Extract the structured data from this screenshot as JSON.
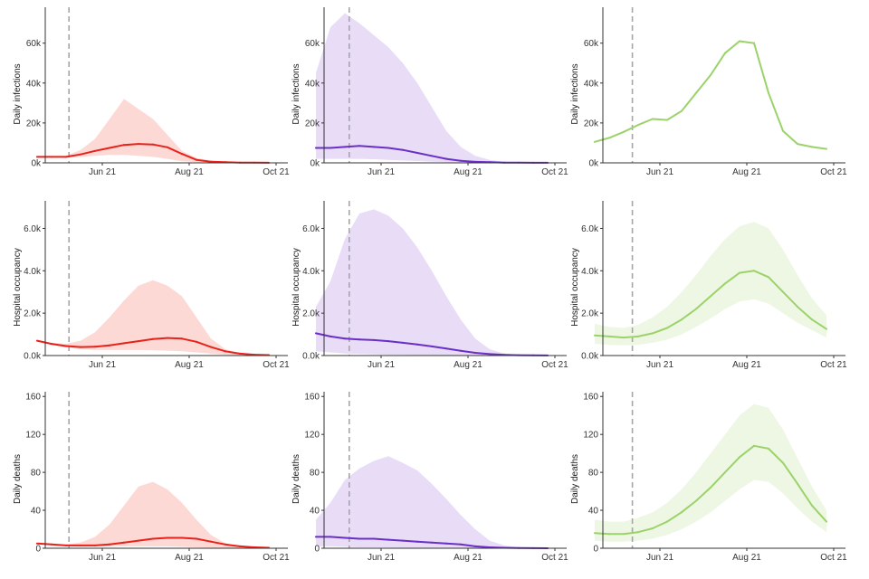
{
  "chart_data": {
    "type": "line",
    "layout": "3x3 small multiples with shaded uncertainty bands",
    "x_ticks": [
      "Jun 21",
      "Aug 21",
      "Oct 21"
    ],
    "x_domain_days": [
      0,
      160
    ],
    "x_tick_days": [
      45,
      105,
      165
    ],
    "vline_note": "dashed vertical reference line",
    "columns": [
      {
        "name": "column-1",
        "line_color": "#e8221a",
        "band_color": "#fdd9d5",
        "vline_day": 22
      },
      {
        "name": "column-2",
        "line_color": "#6a2fc7",
        "band_color": "#e8dcf7",
        "vline_day": 23
      },
      {
        "name": "column-3",
        "line_color": "#9bd36a",
        "band_color": "#eef7e3",
        "vline_day": 26
      }
    ],
    "rows": [
      {
        "ylabel": "Daily infections",
        "ylim": [
          0,
          78000
        ],
        "y_ticks": [
          {
            "v": 0,
            "label": "0k"
          },
          {
            "v": 20000,
            "label": "20k"
          },
          {
            "v": 40000,
            "label": "40k"
          },
          {
            "v": 60000,
            "label": "60k"
          }
        ],
        "panels": [
          {
            "x": [
              0,
              10,
              20,
              30,
              40,
              50,
              60,
              70,
              80,
              90,
              100,
              110,
              120,
              130,
              140,
              150,
              160
            ],
            "line": [
              3000,
              3000,
              3000,
              4200,
              6000,
              7500,
              9000,
              9500,
              9200,
              7800,
              4500,
              1500,
              600,
              300,
              150,
              80,
              50
            ],
            "upper": [
              3000,
              3000,
              3500,
              6500,
              12000,
              22000,
              32000,
              27000,
              22000,
              14000,
              6000,
              2500,
              1000,
              500,
              250,
              120,
              80
            ],
            "lower": [
              3000,
              3000,
              2500,
              2800,
              3500,
              4000,
              4000,
              3500,
              3000,
              2000,
              800,
              300,
              100,
              50,
              20,
              10,
              5
            ]
          },
          {
            "x": [
              0,
              10,
              20,
              30,
              40,
              50,
              60,
              70,
              80,
              90,
              100,
              110,
              120,
              130,
              140,
              150,
              160
            ],
            "line": [
              7500,
              7500,
              8000,
              8500,
              8000,
              7500,
              6500,
              5000,
              3500,
              2000,
              1000,
              500,
              300,
              150,
              80,
              50,
              30
            ],
            "upper": [
              45000,
              68000,
              75000,
              70000,
              64000,
              58000,
              50000,
              40000,
              28000,
              16000,
              8000,
              3500,
              1500,
              600,
              250,
              120,
              60
            ],
            "lower": [
              2000,
              2000,
              2000,
              2000,
              1800,
              1500,
              1200,
              900,
              600,
              300,
              150,
              80,
              40,
              20,
              10,
              5,
              3
            ]
          },
          {
            "x": [
              0,
              10,
              20,
              30,
              40,
              50,
              60,
              70,
              80,
              90,
              100,
              110,
              120,
              130,
              140,
              150,
              160
            ],
            "line": [
              10500,
              12500,
              15500,
              19000,
              22000,
              21500,
              26000,
              35000,
              44000,
              55000,
              61000,
              60000,
              35000,
              16000,
              9500,
              8000,
              7000
            ]
          }
        ]
      },
      {
        "ylabel": "Hospital occupancy",
        "ylim": [
          0,
          7300
        ],
        "y_ticks": [
          {
            "v": 0,
            "label": "0.0k"
          },
          {
            "v": 2000,
            "label": "2.0k"
          },
          {
            "v": 4000,
            "label": "4.0k"
          },
          {
            "v": 6000,
            "label": "6.0k"
          }
        ],
        "panels": [
          {
            "x": [
              0,
              10,
              20,
              30,
              40,
              50,
              60,
              70,
              80,
              90,
              100,
              110,
              120,
              130,
              140,
              150,
              160
            ],
            "line": [
              700,
              550,
              450,
              400,
              420,
              480,
              580,
              680,
              780,
              830,
              800,
              650,
              400,
              200,
              90,
              40,
              20
            ],
            "upper": [
              700,
              600,
              550,
              700,
              1100,
              1800,
              2600,
              3300,
              3550,
              3300,
              2800,
              1800,
              800,
              300,
              120,
              50,
              25
            ],
            "lower": [
              700,
              500,
              380,
              300,
              270,
              260,
              260,
              260,
              250,
              230,
              200,
              150,
              90,
              40,
              15,
              8,
              5
            ]
          },
          {
            "x": [
              0,
              10,
              20,
              30,
              40,
              50,
              60,
              70,
              80,
              90,
              100,
              110,
              120,
              130,
              140,
              150,
              160
            ],
            "line": [
              1050,
              900,
              800,
              760,
              730,
              680,
              600,
              520,
              430,
              330,
              220,
              130,
              70,
              35,
              15,
              8,
              5
            ],
            "upper": [
              2300,
              3500,
              5500,
              6700,
              6900,
              6600,
              6000,
              5100,
              4000,
              2800,
              1700,
              800,
              300,
              100,
              40,
              15,
              8
            ],
            "lower": [
              200,
              150,
              100,
              80,
              60,
              40,
              30,
              20,
              15,
              10,
              5,
              3,
              2,
              1,
              1,
              0,
              0
            ]
          },
          {
            "x": [
              0,
              10,
              20,
              30,
              40,
              50,
              60,
              70,
              80,
              90,
              100,
              110,
              120,
              130,
              140,
              150,
              160
            ],
            "line": [
              950,
              900,
              850,
              900,
              1050,
              1300,
              1700,
              2200,
              2800,
              3400,
              3900,
              4000,
              3700,
              3000,
              2300,
              1700,
              1250
            ],
            "upper": [
              1500,
              1350,
              1300,
              1450,
              1800,
              2300,
              3000,
              3800,
              4700,
              5500,
              6100,
              6300,
              6000,
              5000,
              3800,
              2700,
              1900
            ],
            "lower": [
              550,
              500,
              480,
              500,
              600,
              750,
              1000,
              1350,
              1750,
              2200,
              2550,
              2650,
              2450,
              2000,
              1550,
              1200,
              850
            ]
          }
        ]
      },
      {
        "ylabel": "Daily deaths",
        "ylim": [
          0,
          165
        ],
        "y_ticks": [
          {
            "v": 0,
            "label": "0"
          },
          {
            "v": 40,
            "label": "40"
          },
          {
            "v": 80,
            "label": "80"
          },
          {
            "v": 120,
            "label": "120"
          },
          {
            "v": 160,
            "label": "160"
          }
        ],
        "panels": [
          {
            "x": [
              0,
              10,
              20,
              30,
              40,
              50,
              60,
              70,
              80,
              90,
              100,
              110,
              120,
              130,
              140,
              150,
              160
            ],
            "line": [
              5,
              4,
              3,
              3,
              3,
              4,
              6,
              8,
              10,
              11,
              11,
              10,
              7,
              4,
              2,
              1,
              0.5
            ],
            "upper": [
              5,
              4,
              4,
              6,
              12,
              25,
              45,
              65,
              70,
              62,
              48,
              30,
              14,
              5,
              2,
              1,
              0.5
            ],
            "lower": [
              5,
              3,
              2,
              1.5,
              1.5,
              2,
              2,
              2,
              2,
              2,
              1.5,
              1,
              0.6,
              0.3,
              0.1,
              0.05,
              0
            ]
          },
          {
            "x": [
              0,
              10,
              20,
              30,
              40,
              50,
              60,
              70,
              80,
              90,
              100,
              110,
              120,
              130,
              140,
              150,
              160
            ],
            "line": [
              12,
              12,
              11,
              10,
              10,
              9,
              8,
              7,
              6,
              5,
              4,
              2,
              1,
              0.5,
              0.2,
              0.1,
              0
            ],
            "upper": [
              30,
              48,
              72,
              84,
              92,
              97,
              90,
              82,
              68,
              52,
              35,
              20,
              8,
              3,
              1,
              0.5,
              0.2
            ],
            "lower": [
              2,
              2,
              1.5,
              1,
              1,
              0.8,
              0.6,
              0.5,
              0.3,
              0.2,
              0.1,
              0.05,
              0,
              0,
              0,
              0,
              0
            ]
          },
          {
            "x": [
              0,
              10,
              20,
              30,
              40,
              50,
              60,
              70,
              80,
              90,
              100,
              110,
              120,
              130,
              140,
              150,
              160
            ],
            "line": [
              16,
              15,
              15,
              17,
              21,
              28,
              38,
              50,
              64,
              80,
              96,
              108,
              105,
              90,
              68,
              45,
              28
            ],
            "upper": [
              30,
              28,
              28,
              32,
              38,
              48,
              62,
              80,
              100,
              120,
              140,
              152,
              148,
              125,
              95,
              65,
              40
            ],
            "lower": [
              8,
              7,
              7,
              8,
              10,
              14,
              20,
              28,
              38,
              50,
              62,
              72,
              70,
              58,
              42,
              28,
              17
            ]
          }
        ]
      }
    ]
  }
}
